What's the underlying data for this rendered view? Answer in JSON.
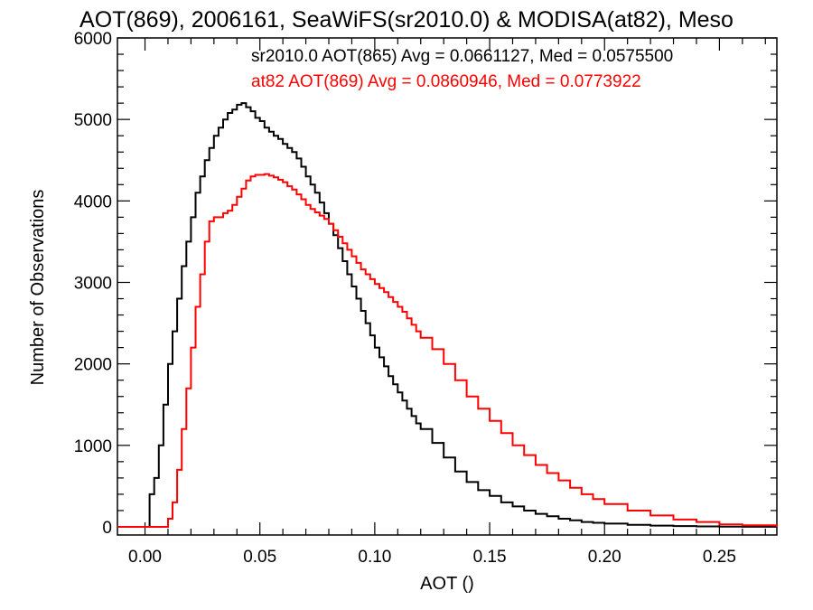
{
  "chart_data": {
    "type": "line",
    "title": "AOT(869), 2006161, SeaWiFS(sr2010.0) & MODISA(at82), Meso",
    "xlabel": "AOT ()",
    "ylabel": "Number of Observations",
    "xlim": [
      -0.012,
      0.275
    ],
    "ylim": [
      -100,
      6000
    ],
    "xticks": [
      0.0,
      0.05,
      0.1,
      0.15,
      0.2,
      0.25
    ],
    "xtick_labels": [
      "0.00",
      "0.05",
      "0.10",
      "0.15",
      "0.20",
      "0.25"
    ],
    "yticks": [
      0,
      1000,
      2000,
      3000,
      4000,
      5000,
      6000
    ],
    "ytick_labels": [
      "0",
      "1000",
      "2000",
      "3000",
      "4000",
      "5000",
      "6000"
    ],
    "grid": false,
    "legend_placement": "top-right",
    "series": [
      {
        "name": "sr2010.0 AOT(865) Avg = 0.0661127, Med = 0.0575500",
        "color": "#000000",
        "x": [
          -0.012,
          0.0,
          0.002,
          0.004,
          0.006,
          0.008,
          0.01,
          0.012,
          0.014,
          0.016,
          0.018,
          0.02,
          0.022,
          0.024,
          0.026,
          0.028,
          0.03,
          0.032,
          0.034,
          0.036,
          0.038,
          0.04,
          0.042,
          0.044,
          0.046,
          0.048,
          0.05,
          0.052,
          0.054,
          0.056,
          0.058,
          0.06,
          0.062,
          0.064,
          0.066,
          0.068,
          0.07,
          0.072,
          0.074,
          0.076,
          0.078,
          0.08,
          0.082,
          0.084,
          0.086,
          0.088,
          0.09,
          0.092,
          0.094,
          0.096,
          0.098,
          0.1,
          0.102,
          0.104,
          0.106,
          0.108,
          0.11,
          0.112,
          0.114,
          0.116,
          0.118,
          0.12,
          0.125,
          0.13,
          0.135,
          0.14,
          0.145,
          0.15,
          0.155,
          0.16,
          0.165,
          0.17,
          0.175,
          0.18,
          0.185,
          0.19,
          0.195,
          0.2,
          0.21,
          0.22,
          0.23,
          0.24,
          0.25,
          0.26,
          0.275
        ],
        "y": [
          0,
          0,
          400,
          600,
          1000,
          1500,
          2000,
          2400,
          2800,
          3200,
          3500,
          3800,
          4100,
          4300,
          4500,
          4650,
          4800,
          4900,
          5000,
          5080,
          5120,
          5180,
          5200,
          5150,
          5100,
          5020,
          4980,
          4900,
          4850,
          4800,
          4760,
          4700,
          4650,
          4600,
          4520,
          4420,
          4300,
          4200,
          4100,
          3980,
          3850,
          3720,
          3580,
          3420,
          3260,
          3100,
          2950,
          2800,
          2650,
          2500,
          2350,
          2200,
          2080,
          1970,
          1850,
          1750,
          1650,
          1550,
          1450,
          1360,
          1270,
          1200,
          1030,
          850,
          680,
          550,
          450,
          380,
          300,
          250,
          200,
          160,
          130,
          100,
          80,
          60,
          50,
          40,
          25,
          15,
          10,
          5,
          3,
          1,
          0
        ]
      },
      {
        "name": "at82 AOT(869) Avg = 0.0860946, Med = 0.0773922",
        "color": "#ff0000",
        "x": [
          -0.012,
          0.008,
          0.01,
          0.012,
          0.014,
          0.016,
          0.018,
          0.02,
          0.022,
          0.024,
          0.026,
          0.028,
          0.03,
          0.032,
          0.034,
          0.036,
          0.038,
          0.04,
          0.042,
          0.044,
          0.046,
          0.048,
          0.05,
          0.052,
          0.054,
          0.056,
          0.058,
          0.06,
          0.062,
          0.064,
          0.066,
          0.068,
          0.07,
          0.072,
          0.074,
          0.076,
          0.078,
          0.08,
          0.082,
          0.084,
          0.086,
          0.088,
          0.09,
          0.092,
          0.094,
          0.096,
          0.098,
          0.1,
          0.102,
          0.104,
          0.106,
          0.108,
          0.11,
          0.112,
          0.114,
          0.116,
          0.118,
          0.12,
          0.125,
          0.13,
          0.135,
          0.14,
          0.145,
          0.15,
          0.155,
          0.16,
          0.165,
          0.17,
          0.175,
          0.18,
          0.185,
          0.19,
          0.195,
          0.2,
          0.21,
          0.22,
          0.23,
          0.24,
          0.25,
          0.26,
          0.275
        ],
        "y": [
          0,
          0,
          100,
          300,
          700,
          1200,
          1700,
          2200,
          2700,
          3100,
          3500,
          3750,
          3800,
          3800,
          3850,
          3880,
          3950,
          4050,
          4150,
          4250,
          4300,
          4320,
          4320,
          4330,
          4310,
          4290,
          4260,
          4230,
          4180,
          4140,
          4080,
          4020,
          3950,
          3900,
          3860,
          3820,
          3780,
          3720,
          3640,
          3560,
          3480,
          3400,
          3320,
          3240,
          3160,
          3100,
          3040,
          2980,
          2930,
          2880,
          2820,
          2760,
          2700,
          2640,
          2560,
          2480,
          2400,
          2320,
          2180,
          2000,
          1800,
          1600,
          1450,
          1300,
          1150,
          1000,
          880,
          760,
          660,
          570,
          480,
          400,
          340,
          280,
          200,
          140,
          90,
          60,
          30,
          20,
          0
        ]
      }
    ]
  }
}
